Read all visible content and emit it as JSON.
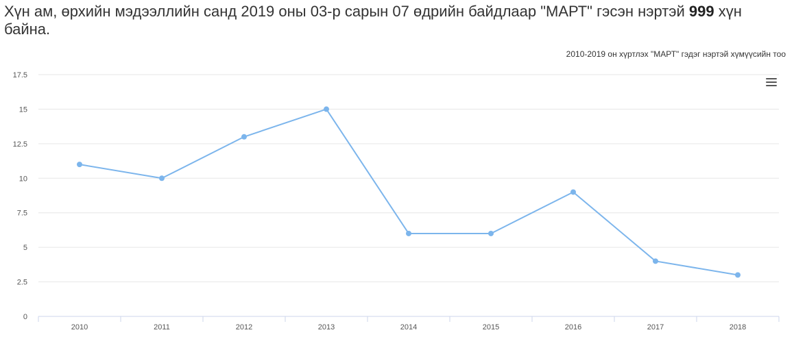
{
  "headline": {
    "text_before": "Хүн ам, өрхийн мэдээллийн санд 2019 оны 03-р сарын 07 өдрийн байдлаар \"МАРТ\" гэсэн нэртэй ",
    "count": "999",
    "text_after": " хүн байна."
  },
  "menu": {
    "icon": "hamburger-menu-icon"
  },
  "chart_data": {
    "type": "line",
    "title": "2010-2019 он хүртлэх \"МАРТ\" гэдэг нэртэй хүмүүсийн тоо",
    "xlabel": "",
    "ylabel": "",
    "categories": [
      "2010",
      "2011",
      "2012",
      "2013",
      "2014",
      "2015",
      "2016",
      "2017",
      "2018"
    ],
    "series": [
      {
        "values": [
          11,
          10,
          13,
          15,
          6,
          6,
          9,
          4,
          3
        ],
        "color": "#7cb5ec"
      }
    ],
    "ylim": [
      0,
      17.5
    ],
    "yticks": [
      "0",
      "2.5",
      "5",
      "7.5",
      "10",
      "12.5",
      "15",
      "17.5"
    ],
    "grid": true,
    "legend": false
  }
}
